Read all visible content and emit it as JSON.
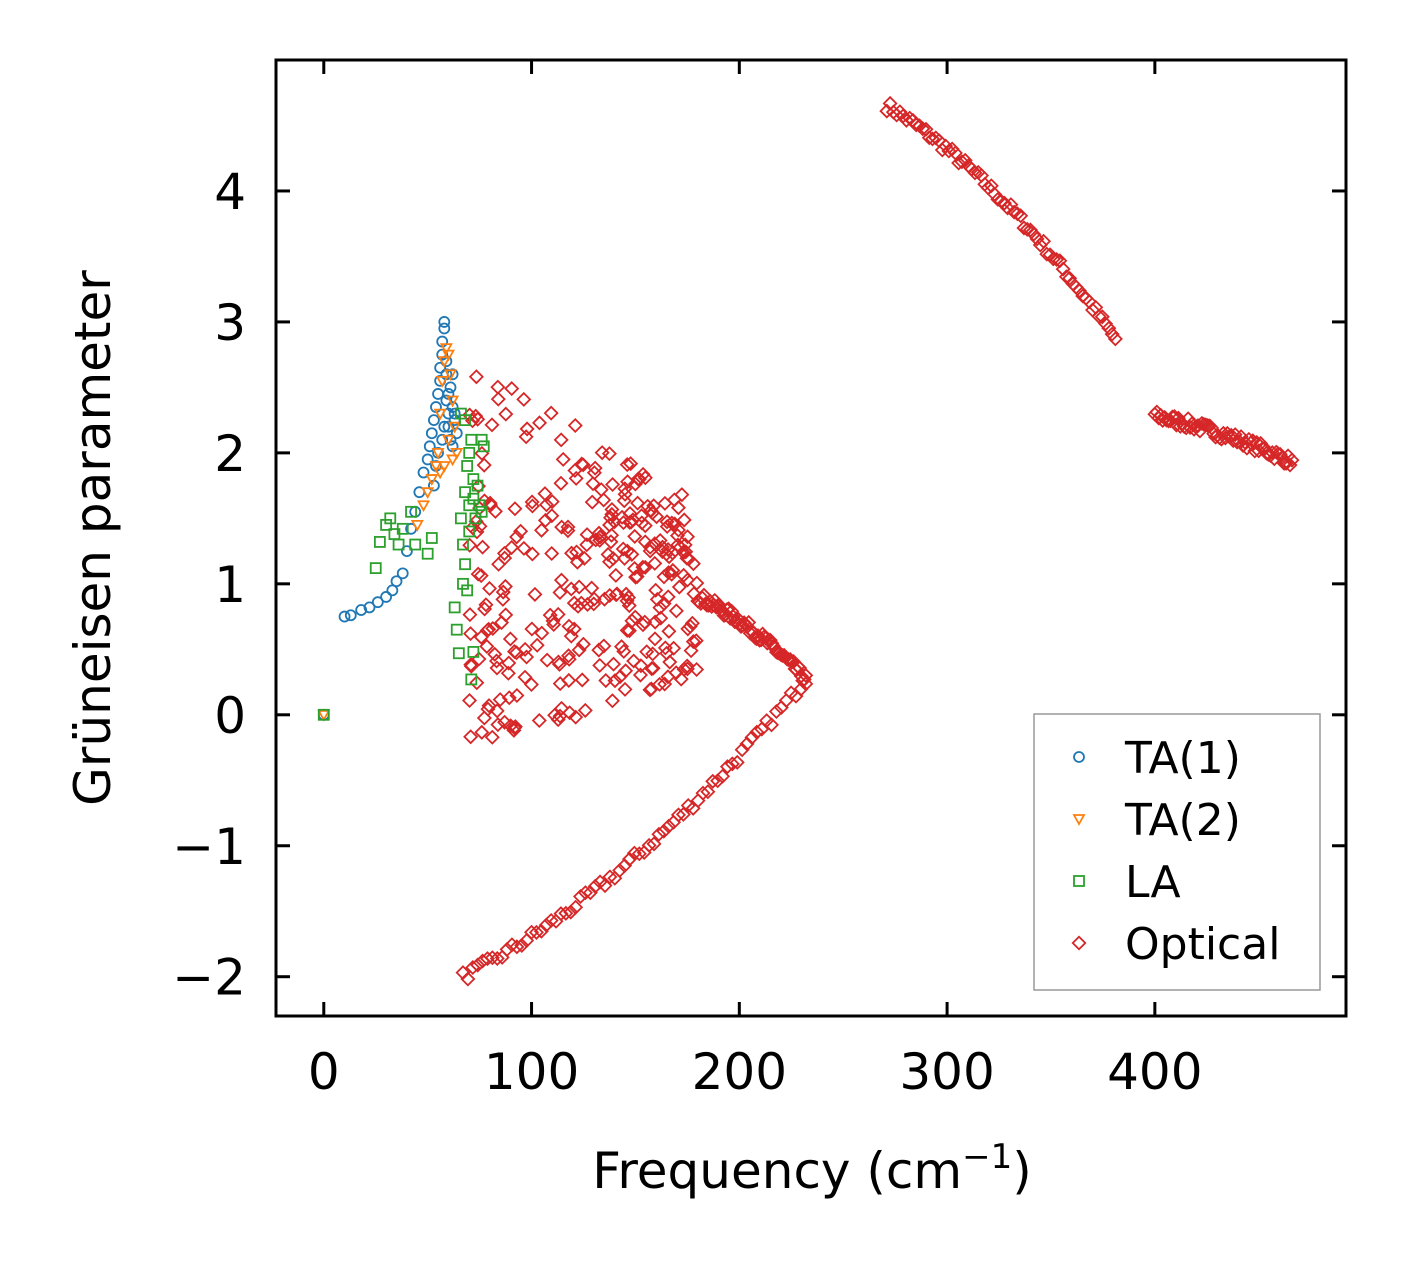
{
  "chart_data": {
    "type": "scatter",
    "title": "",
    "xlabel": "Frequency (cm",
    "xlabel_superscript": "−1",
    "xlabel_suffix": ")",
    "ylabel": "Grüneisen parameter",
    "xlim": [
      -23,
      492
    ],
    "ylim": [
      -2.3,
      5.0
    ],
    "xticks": [
      0,
      100,
      200,
      300,
      400
    ],
    "xtick_labels": [
      "0",
      "100",
      "200",
      "300",
      "400"
    ],
    "yticks": [
      -2,
      -1,
      0,
      1,
      2,
      3,
      4
    ],
    "ytick_labels": [
      "−2",
      "−1",
      "0",
      "1",
      "2",
      "3",
      "4"
    ],
    "grid": false,
    "legend_position": "bottom-right",
    "series": [
      {
        "name": "TA(1)",
        "color": "#1f77b4",
        "marker": "circle",
        "x": [
          0,
          10,
          13,
          18,
          22,
          26,
          30,
          33,
          35,
          38,
          40,
          42,
          44,
          46,
          48,
          50,
          51,
          52,
          53,
          54,
          55,
          56,
          56,
          57,
          57,
          58,
          58,
          59,
          59,
          60,
          60,
          61,
          61,
          62,
          62,
          63,
          64,
          55,
          54,
          53,
          57,
          58,
          60,
          62,
          63,
          59
        ],
        "y": [
          0,
          0.75,
          0.76,
          0.8,
          0.82,
          0.86,
          0.9,
          0.95,
          1.02,
          1.08,
          1.25,
          1.42,
          1.55,
          1.7,
          1.85,
          1.95,
          2.05,
          2.15,
          2.25,
          2.35,
          2.45,
          2.55,
          2.65,
          2.75,
          2.85,
          2.95,
          3.0,
          2.6,
          2.4,
          2.3,
          2.2,
          2.1,
          2.5,
          2.35,
          2.05,
          2.25,
          2.15,
          2.0,
          1.9,
          1.75,
          2.1,
          2.2,
          2.45,
          2.6,
          2.3,
          2.7
        ]
      },
      {
        "name": "TA(2)",
        "color": "#ff7f0e",
        "marker": "triangle-down",
        "x": [
          0,
          45,
          48,
          50,
          52,
          54,
          55,
          56,
          57,
          58,
          59,
          60,
          61,
          62,
          63,
          64,
          56,
          58,
          60,
          62
        ],
        "y": [
          0,
          1.45,
          1.6,
          1.7,
          1.8,
          1.9,
          2.0,
          2.3,
          2.55,
          2.7,
          2.8,
          2.75,
          2.6,
          2.4,
          2.2,
          2.0,
          1.85,
          1.9,
          2.1,
          1.95
        ]
      },
      {
        "name": "LA",
        "color": "#2ca02c",
        "marker": "square",
        "x": [
          0,
          25,
          27,
          30,
          32,
          34,
          36,
          38,
          42,
          44,
          50,
          52,
          63,
          64,
          65,
          66,
          67,
          67,
          68,
          68,
          69,
          69,
          70,
          70,
          71,
          71,
          72,
          72,
          73,
          74,
          75,
          76,
          76,
          77,
          66,
          68,
          70,
          72
        ],
        "y": [
          0,
          1.12,
          1.32,
          1.45,
          1.5,
          1.38,
          1.3,
          1.42,
          1.55,
          1.3,
          1.23,
          1.35,
          0.82,
          0.65,
          0.47,
          1.5,
          1.3,
          1.0,
          1.7,
          1.15,
          1.9,
          0.95,
          2.0,
          1.6,
          2.1,
          0.27,
          1.8,
          0.48,
          1.5,
          1.75,
          1.6,
          1.55,
          2.1,
          2.05,
          2.3,
          2.25,
          1.4,
          1.65
        ]
      },
      {
        "name": "Optical",
        "color": "#d62728",
        "marker": "diamond",
        "x": [],
        "y": [],
        "segments": [
          {
            "x_from": 271,
            "x_to": 381,
            "y_from": 4.65,
            "y_to": 2.87
          },
          {
            "x_from": 400,
            "x_to": 466,
            "y_from": 2.28,
            "y_to": 1.93
          },
          {
            "x_from": 67,
            "x_to": 232,
            "y_from": -2.0,
            "y_to": 0.27
          },
          {
            "x_from": 180,
            "x_to": 232,
            "y_from": 0.9,
            "y_to": 0.27
          }
        ],
        "cloud": {
          "x_from": 70,
          "x_to": 180,
          "y_from": -0.3,
          "y_to": 2.8
        }
      }
    ]
  }
}
